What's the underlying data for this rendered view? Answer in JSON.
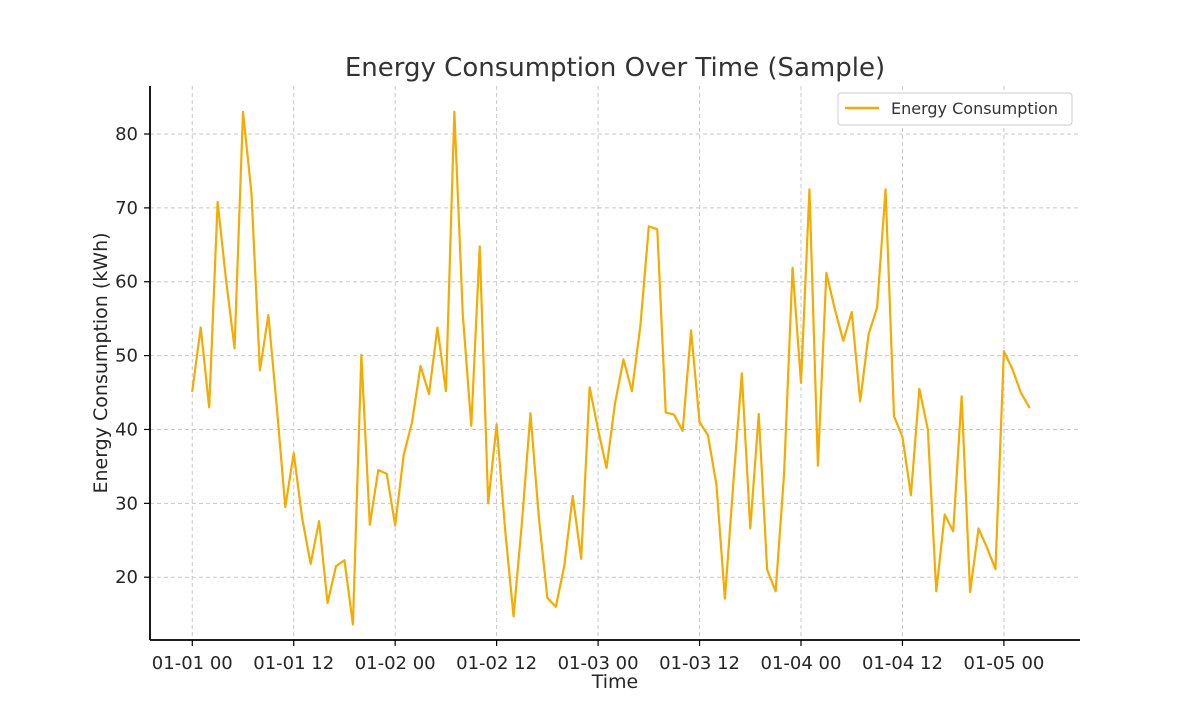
{
  "chart_data": {
    "type": "line",
    "title": "Energy Consumption Over Time (Sample)",
    "xlabel": "Time",
    "ylabel": "Energy Consumption (kWh)",
    "x_tick_labels": [
      "01-01 00",
      "01-01 12",
      "01-02 00",
      "01-02 12",
      "01-03 00",
      "01-03 12",
      "01-04 00",
      "01-04 12",
      "01-05 00"
    ],
    "y_ticks": [
      20,
      30,
      40,
      50,
      60,
      70,
      80
    ],
    "x_range_hours": [
      -5,
      105
    ],
    "ylim": [
      11.5,
      86.5
    ],
    "grid": true,
    "legend_position": "top-right",
    "x_interval_hours": 1,
    "series": [
      {
        "name": "Energy Consumption",
        "color": "#f5ab00",
        "values": [
          45.2,
          53.8,
          43.0,
          70.8,
          60.2,
          51.0,
          83.0,
          72.0,
          48.0,
          55.5,
          43.0,
          29.5,
          36.8,
          28.0,
          21.8,
          27.6,
          16.5,
          21.5,
          22.3,
          13.6,
          50.1,
          27.1,
          34.5,
          34.0,
          27.0,
          36.5,
          41.0,
          48.6,
          44.8,
          53.8,
          45.2,
          83.0,
          55.5,
          40.5,
          64.8,
          30.0,
          40.7,
          26.5,
          14.7,
          27.5,
          42.2,
          28.0,
          17.2,
          16.0,
          21.5,
          31.0,
          22.5,
          45.7,
          40.0,
          34.8,
          43.5,
          49.5,
          45.2,
          54.0,
          67.5,
          67.1,
          42.3,
          42.0,
          39.8,
          53.4,
          41.0,
          39.2,
          32.5,
          17.1,
          32.8,
          47.6,
          26.6,
          42.1,
          21.0,
          18.1,
          34.0,
          61.9,
          46.3,
          72.5,
          35.1,
          61.2,
          56.3,
          52.0,
          55.9,
          43.8,
          52.9,
          56.5,
          72.5,
          41.8,
          39.0,
          31.1,
          45.5,
          40.0,
          18.1,
          28.5,
          26.2,
          44.5,
          18.0,
          26.6,
          24.0,
          21.1,
          50.6,
          48.2,
          45.0,
          43.0
        ]
      }
    ]
  }
}
